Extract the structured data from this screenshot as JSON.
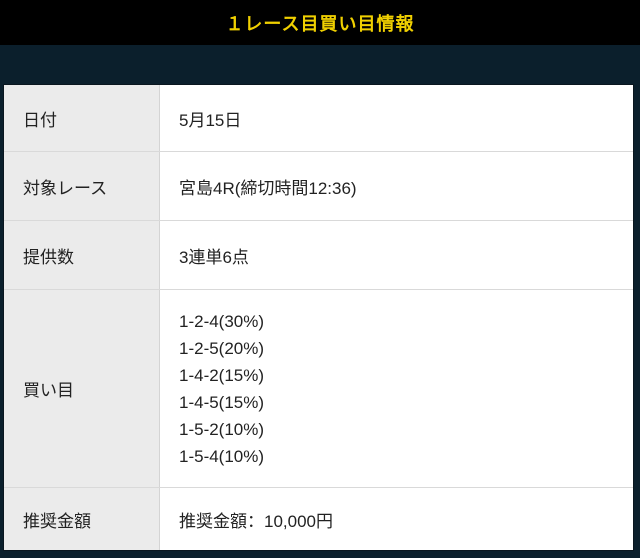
{
  "header": {
    "title": "１レース目買い目情報"
  },
  "table": {
    "rows": [
      {
        "label": "日付",
        "value": "5月15日"
      },
      {
        "label": "対象レース",
        "value": "宮島4R(締切時間12:36)"
      },
      {
        "label": "提供数",
        "value": "3連単6点"
      },
      {
        "label": "買い目",
        "values": [
          "1-2-4(30%)",
          "1-2-5(20%)",
          "1-4-2(15%)",
          "1-4-5(15%)",
          "1-5-2(10%)",
          "1-5-4(10%)"
        ]
      },
      {
        "label": "推奨金額",
        "value": "推奨金額：10,000円"
      }
    ]
  },
  "colors": {
    "header-bg": "#000000",
    "accent": "#f0d000",
    "band": "#0b1f2c",
    "label-bg": "#ebebeb",
    "text": "#222222",
    "divider": "#d9d9d9"
  }
}
